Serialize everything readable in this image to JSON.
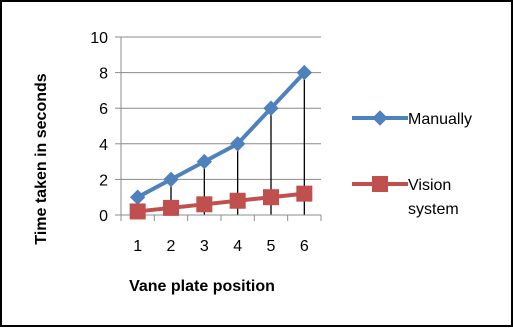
{
  "chart_data": {
    "type": "line",
    "categories": [
      "1",
      "2",
      "3",
      "4",
      "5",
      "6"
    ],
    "series": [
      {
        "name": "Manually",
        "values": [
          1,
          2,
          3,
          4,
          6,
          8
        ],
        "color": "#4F81BD",
        "marker": "diamond"
      },
      {
        "name": "Vision system",
        "name_lines": [
          "Vision",
          "system"
        ],
        "values": [
          0.2,
          0.4,
          0.6,
          0.8,
          1.0,
          1.2
        ],
        "color": "#C0504D",
        "marker": "square"
      }
    ],
    "title": "",
    "xlabel": "Vane plate position",
    "ylabel": "Time taken in seconds",
    "ylim": [
      0,
      10
    ],
    "yticks": [
      0,
      2,
      4,
      6,
      8,
      10
    ],
    "grid": true,
    "drop_lines": true,
    "legend_position": "right"
  }
}
